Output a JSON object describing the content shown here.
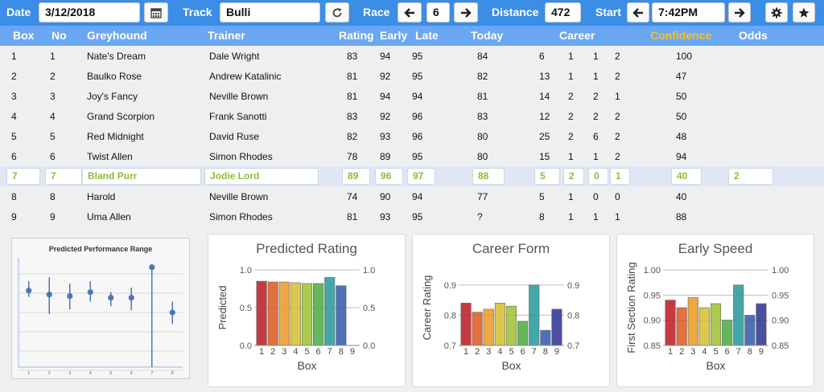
{
  "toolbar": {
    "date_label": "Date",
    "date_value": "3/12/2018",
    "calendar_icon": "calendar-icon",
    "track_label": "Track",
    "track_value": "Bulli",
    "refresh_icon": "refresh-icon",
    "race_label": "Race",
    "race_value": "6",
    "distance_label": "Distance",
    "distance_value": "472",
    "start_label": "Start",
    "start_value": "7:42PM",
    "settings_icon": "gear-icon",
    "favorite_icon": "star-icon",
    "colors": {
      "bar": "#3b8de6",
      "header": "#6aa7f2",
      "confidence": "#f2c230",
      "selected_text": "#8bbd3a"
    }
  },
  "table": {
    "headers": {
      "box": "Box",
      "no": "No",
      "greyhound": "Greyhound",
      "trainer": "Trainer",
      "rating": "Rating",
      "early": "Early",
      "late": "Late",
      "today": "Today",
      "career": "Career",
      "confidence": "Confidence",
      "odds": "Odds"
    },
    "rows": [
      {
        "box": "1",
        "no": "1",
        "greyhound": "Nate's Dream",
        "trainer": "Dale Wright",
        "rating": "83",
        "early": "94",
        "late": "95",
        "today": "84",
        "c1": "6",
        "c2": "1",
        "c3": "1",
        "c4": "2",
        "confidence": "100",
        "odds": ""
      },
      {
        "box": "2",
        "no": "2",
        "greyhound": "Baulko Rose",
        "trainer": "Andrew Katalinic",
        "rating": "81",
        "early": "92",
        "late": "95",
        "today": "82",
        "c1": "13",
        "c2": "1",
        "c3": "1",
        "c4": "2",
        "confidence": "47",
        "odds": ""
      },
      {
        "box": "3",
        "no": "3",
        "greyhound": "Joy's Fancy",
        "trainer": "Neville Brown",
        "rating": "81",
        "early": "94",
        "late": "94",
        "today": "81",
        "c1": "14",
        "c2": "2",
        "c3": "2",
        "c4": "1",
        "confidence": "50",
        "odds": ""
      },
      {
        "box": "4",
        "no": "4",
        "greyhound": "Grand Scorpion",
        "trainer": "Frank Sanotti",
        "rating": "83",
        "early": "92",
        "late": "96",
        "today": "83",
        "c1": "12",
        "c2": "2",
        "c3": "2",
        "c4": "2",
        "confidence": "50",
        "odds": ""
      },
      {
        "box": "5",
        "no": "5",
        "greyhound": "Red Midnight",
        "trainer": "David Ruse",
        "rating": "82",
        "early": "93",
        "late": "96",
        "today": "80",
        "c1": "25",
        "c2": "2",
        "c3": "6",
        "c4": "2",
        "confidence": "48",
        "odds": ""
      },
      {
        "box": "6",
        "no": "6",
        "greyhound": "Twist Allen",
        "trainer": "Simon Rhodes",
        "rating": "78",
        "early": "89",
        "late": "95",
        "today": "80",
        "c1": "15",
        "c2": "1",
        "c3": "1",
        "c4": "2",
        "confidence": "94",
        "odds": ""
      },
      {
        "box": "7",
        "no": "7",
        "greyhound": "Bland Purr",
        "trainer": "Jodie Lord",
        "rating": "89",
        "early": "96",
        "late": "97",
        "today": "88",
        "c1": "5",
        "c2": "2",
        "c3": "0",
        "c4": "1",
        "confidence": "40",
        "odds": "2",
        "selected": true
      },
      {
        "box": "8",
        "no": "8",
        "greyhound": "Harold",
        "trainer": "Neville Brown",
        "rating": "74",
        "early": "90",
        "late": "94",
        "today": "77",
        "c1": "5",
        "c2": "1",
        "c3": "0",
        "c4": "0",
        "confidence": "40",
        "odds": ""
      },
      {
        "box": "9",
        "no": "9",
        "greyhound": "Uma Allen",
        "trainer": "Simon Rhodes",
        "rating": "81",
        "early": "93",
        "late": "95",
        "today": "?",
        "c1": "8",
        "c2": "1",
        "c3": "1",
        "c4": "1",
        "confidence": "88",
        "odds": ""
      }
    ]
  },
  "chart_data": [
    {
      "type": "scatter",
      "title": "Predicted Performance Range",
      "categories": [
        "1",
        "2",
        "3",
        "4",
        "5",
        "6",
        "7",
        "8"
      ],
      "values": [
        0.58,
        0.53,
        0.51,
        0.56,
        0.49,
        0.49,
        0.88,
        0.3
      ],
      "range_low": [
        0.5,
        0.28,
        0.34,
        0.44,
        0.38,
        0.33,
        -0.4,
        0.15
      ],
      "range_high": [
        0.7,
        0.75,
        0.67,
        0.7,
        0.56,
        0.62,
        0.88,
        0.44
      ],
      "ylim": [
        -0.4,
        1.0
      ]
    },
    {
      "type": "bar",
      "title": "Predicted Rating",
      "xlabel": "Box",
      "ylabel": "Predicted",
      "categories": [
        "1",
        "2",
        "3",
        "4",
        "5",
        "6",
        "7",
        "8",
        "9"
      ],
      "values": [
        0.85,
        0.84,
        0.84,
        0.83,
        0.82,
        0.82,
        0.9,
        0.79,
        0.0
      ],
      "yticks": [
        "0.0",
        "0.5",
        "1.0"
      ],
      "ylim": [
        0.0,
        1.0
      ]
    },
    {
      "type": "bar",
      "title": "Career Form",
      "xlabel": "Box",
      "ylabel": "Career Rating",
      "categories": [
        "1",
        "2",
        "3",
        "4",
        "5",
        "6",
        "7",
        "8",
        "9"
      ],
      "values": [
        0.84,
        0.81,
        0.82,
        0.84,
        0.83,
        0.78,
        0.9,
        0.75,
        0.82
      ],
      "yticks": [
        "0.7",
        "0.8",
        "0.9"
      ],
      "ylim": [
        0.7,
        0.95
      ]
    },
    {
      "type": "bar",
      "title": "Early Speed",
      "xlabel": "Box",
      "ylabel": "First Section Rating",
      "categories": [
        "1",
        "2",
        "3",
        "4",
        "5",
        "6",
        "7",
        "8",
        "9"
      ],
      "values": [
        0.94,
        0.925,
        0.945,
        0.925,
        0.933,
        0.9,
        0.97,
        0.91,
        0.933
      ],
      "yticks": [
        "0.85",
        "0.90",
        "0.95",
        "1.00"
      ],
      "ylim": [
        0.85,
        1.0
      ]
    }
  ]
}
